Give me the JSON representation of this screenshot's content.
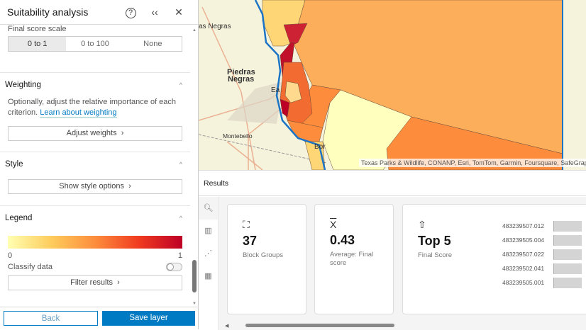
{
  "panel": {
    "title": "Suitability analysis",
    "final_score_scale_label": "Final score scale",
    "scale_options": [
      "0 to 1",
      "0 to 100",
      "None"
    ],
    "weighting": {
      "title": "Weighting",
      "description": "Optionally, adjust the relative importance of each criterion.",
      "link": "Learn about weighting",
      "button": "Adjust weights"
    },
    "style": {
      "title": "Style",
      "button": "Show style options"
    },
    "legend": {
      "title": "Legend",
      "min": "0",
      "max": "1",
      "classify": "Classify data",
      "classify_on": false,
      "button": "Filter results",
      "colors": [
        "#ffffb2",
        "#fecc5c",
        "#fd8d3c",
        "#f03b20",
        "#bd0026"
      ]
    },
    "back": "Back",
    "save": "Save layer"
  },
  "map": {
    "labels": {
      "piedras": "Piedras",
      "negras": "Negras",
      "las_negras": "as Negras",
      "montebello": "Montebello",
      "eagle": "Ea",
      "bor": "Bor"
    },
    "attribution": "Texas Parks & Wildlife, CONANP, Esri, TomTom, Garmin, Foursquare, SafeGraph, M"
  },
  "results": {
    "title": "Results",
    "cards": [
      {
        "value": "37",
        "label": "Block Groups"
      },
      {
        "value": "0.43",
        "label": "Average: Final score"
      },
      {
        "value": "Top 5",
        "label": "Final Score"
      }
    ],
    "top5": [
      "483239507.012",
      "483239505.004",
      "483239507.022",
      "483239502.041",
      "483239505.001"
    ]
  }
}
